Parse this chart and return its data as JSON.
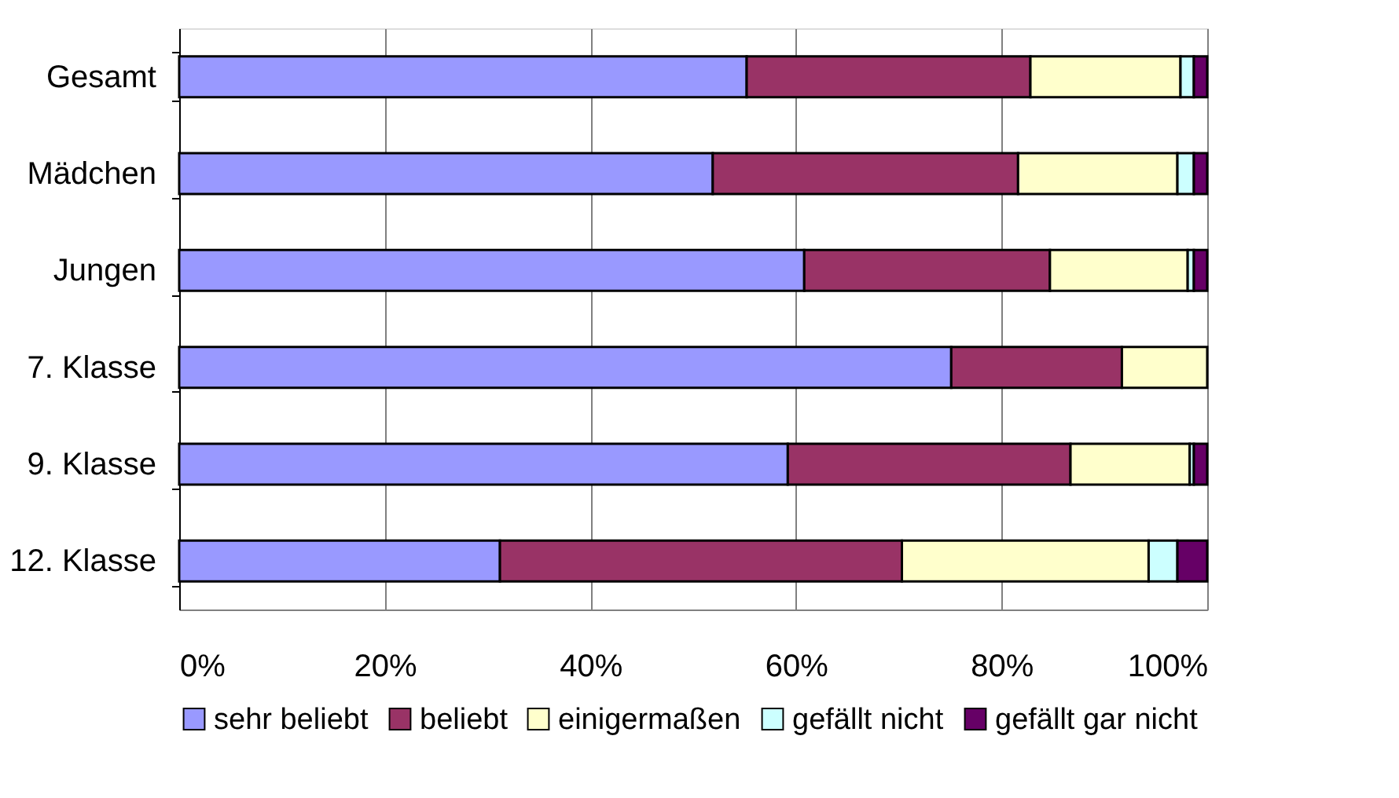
{
  "chart_data": {
    "type": "bar",
    "orientation": "horizontal",
    "stacked": true,
    "categories": [
      "Gesamt",
      "Mädchen",
      "Jungen",
      "7. Klasse",
      "9. Klasse",
      "12. Klasse"
    ],
    "series": [
      {
        "name": "sehr beliebt",
        "color": "#9999ff",
        "values": [
          55.2,
          51.9,
          60.8,
          75.1,
          59.2,
          31.2
        ]
      },
      {
        "name": "beliebt",
        "color": "#993366",
        "values": [
          27.6,
          29.7,
          23.9,
          16.6,
          27.5,
          39.1
        ]
      },
      {
        "name": "einigermaßen",
        "color": "#ffffcc",
        "values": [
          14.6,
          15.5,
          13.4,
          8.3,
          11.6,
          24.0
        ]
      },
      {
        "name": "gefällt nicht",
        "color": "#ccffff",
        "values": [
          1.3,
          1.6,
          0.6,
          null,
          0.4,
          2.8
        ]
      },
      {
        "name": "gefällt gar nicht",
        "color": "#660066",
        "values": [
          1.3,
          1.3,
          1.3,
          null,
          1.3,
          2.9
        ]
      }
    ],
    "xlim": [
      0,
      100
    ],
    "xticks": [
      {
        "value": 0,
        "label": "0%"
      },
      {
        "value": 20,
        "label": "20%"
      },
      {
        "value": 40,
        "label": "40%"
      },
      {
        "value": 60,
        "label": "60%"
      },
      {
        "value": 80,
        "label": "80%"
      },
      {
        "value": 100,
        "label": "100%"
      }
    ],
    "grid": "x",
    "legend": "bottom"
  }
}
